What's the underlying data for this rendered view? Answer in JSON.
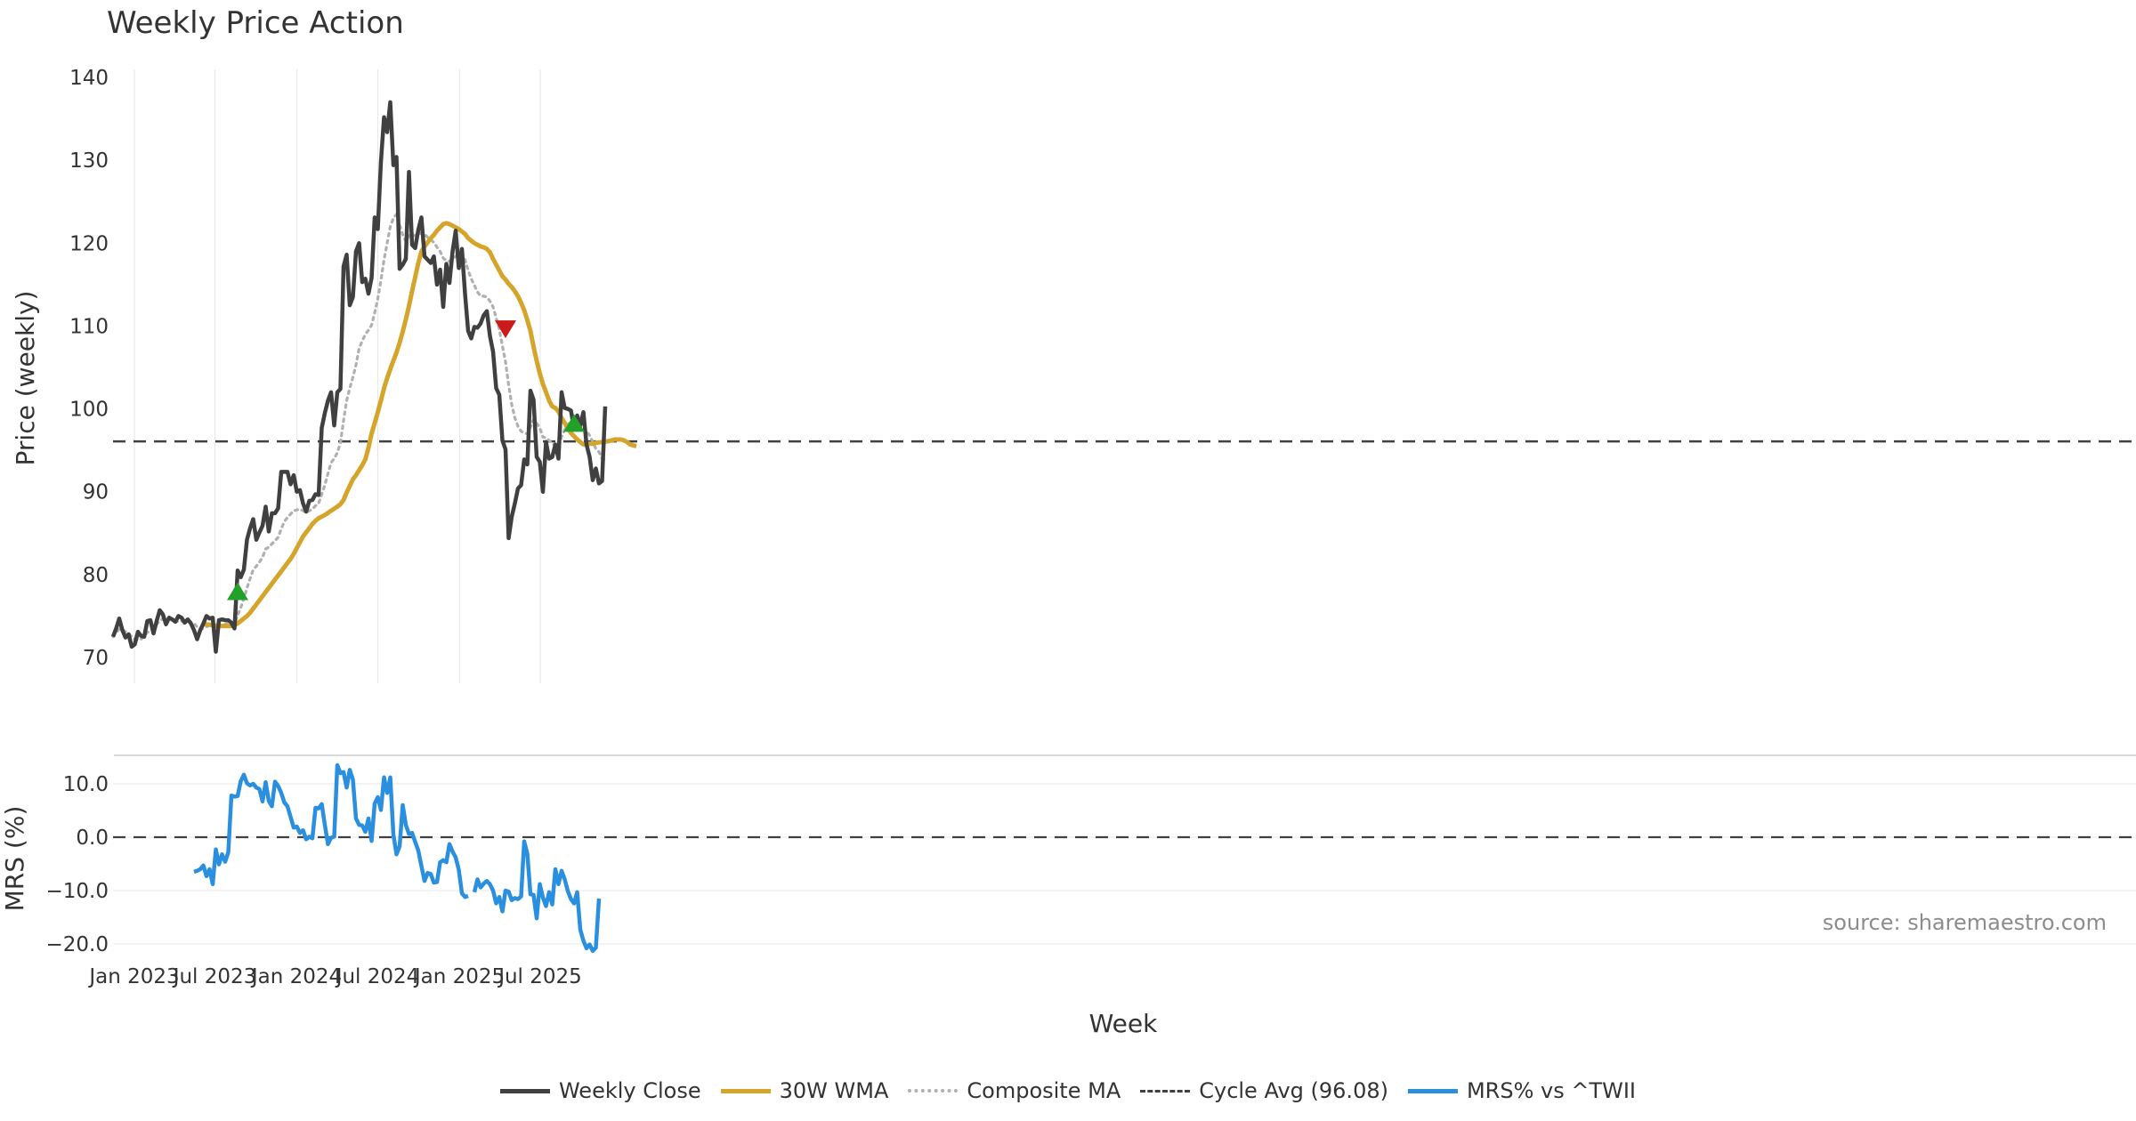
{
  "chart_data": [
    {
      "type": "line",
      "title": "Weekly Price Action",
      "xlabel": "",
      "ylabel": "Price (weekly)",
      "ylim": [
        67,
        141
      ],
      "yticks": [
        "70",
        "80",
        "90",
        "100",
        "110",
        "120",
        "130",
        "140"
      ],
      "x_start": "2022-11-14",
      "x_end": "2025-11-24",
      "x_step_weeks": 1,
      "series": [
        {
          "name": "Weekly Close",
          "color": "#404040",
          "style": "solid",
          "values": [
            72.5,
            73.5,
            74.7,
            73.3,
            72.4,
            72.8,
            71.3,
            71.6,
            73.1,
            72.6,
            72.5,
            74.4,
            74.5,
            72.9,
            74.4,
            75.7,
            75.2,
            74.0,
            74.8,
            74.6,
            74.3,
            75.0,
            74.8,
            74.2,
            74.6,
            74.1,
            73.3,
            72.2,
            73.3,
            74.1,
            75.0,
            74.7,
            74.8,
            70.7,
            74.5,
            74.6,
            74.5,
            74.5,
            74.2,
            73.5,
            80.5,
            79.7,
            80.6,
            84.2,
            85.6,
            86.7,
            84.2,
            85.1,
            85.9,
            88.2,
            85.2,
            87.4,
            87.4,
            88.0,
            92.4,
            92.4,
            92.4,
            90.9,
            92.0,
            90.0,
            90.2,
            88.6,
            87.6,
            88.9,
            89.0,
            89.7,
            89.6,
            97.7,
            99.5,
            101.0,
            102.0,
            98.0,
            102.0,
            102.4,
            117.2,
            118.6,
            112.5,
            113.5,
            119.0,
            120.0,
            115.3,
            115.7,
            113.9,
            115.8,
            123.1,
            121.7,
            129.8,
            135.2,
            133.4,
            137.0,
            129.4,
            130.4,
            116.9,
            117.4,
            118.1,
            128.6,
            119.8,
            119.4,
            121.6,
            123.1,
            118.4,
            118.0,
            117.6,
            118.4,
            115.0,
            116.8,
            112.3,
            117.5,
            115.2,
            119.0,
            121.5,
            117.0,
            119.3,
            113.9,
            109.4,
            108.5,
            109.9,
            109.8,
            110.3,
            111.3,
            111.8,
            108.8,
            106.9,
            102.5,
            101.7,
            96.2,
            95.1,
            84.4,
            87.0,
            88.6,
            90.4,
            90.8,
            93.9,
            93.3,
            102.2,
            101.1,
            94.2,
            93.6,
            90.0,
            96.0,
            94.0,
            94.2,
            95.7,
            94.0,
            102.0,
            100.1,
            100.0,
            99.8,
            97.6,
            99.2,
            98.0,
            99.6,
            95.7,
            94.2,
            91.4,
            92.8,
            91.0,
            91.3,
            100.3
          ]
        },
        {
          "name": "30W WMA",
          "color": "#d4a52a",
          "style": "solid",
          "start_index": 29,
          "values": [
            74.0,
            74.0,
            73.95,
            73.9,
            73.85,
            73.8,
            73.8,
            73.8,
            73.8,
            73.8,
            73.9,
            74.1,
            74.4,
            74.7,
            75.0,
            75.4,
            75.9,
            76.4,
            76.9,
            77.4,
            77.9,
            78.4,
            78.9,
            79.4,
            79.9,
            80.4,
            80.9,
            81.4,
            81.9,
            82.5,
            83.2,
            83.9,
            84.6,
            85.1,
            85.6,
            86.1,
            86.5,
            86.8,
            87.0,
            87.2,
            87.45,
            87.7,
            87.95,
            88.2,
            88.5,
            89.0,
            89.9,
            90.7,
            91.5,
            92.0,
            92.6,
            93.2,
            93.9,
            95.3,
            97.0,
            98.3,
            99.6,
            101.0,
            102.5,
            103.7,
            104.8,
            105.8,
            106.8,
            108.0,
            109.3,
            110.8,
            112.4,
            114.2,
            115.9,
            117.6,
            119.0,
            119.6,
            120.1,
            120.6,
            121.0,
            121.5,
            121.9,
            122.3,
            122.4,
            122.3,
            122.1,
            121.9,
            121.7,
            121.4,
            121.1,
            120.6,
            120.3,
            120.0,
            119.8,
            119.6,
            119.5,
            119.3,
            118.9,
            118.1,
            117.4,
            116.7,
            116.0,
            115.6,
            115.1,
            114.7,
            114.2,
            113.6,
            112.8,
            111.9,
            110.7,
            109.4,
            107.5,
            105.8,
            104.3,
            103.0,
            102.0,
            101.0,
            100.3,
            100.1,
            99.7,
            98.9,
            98.3,
            97.6,
            97.1,
            96.7,
            96.3,
            96.0,
            95.7,
            95.7,
            95.8,
            95.8,
            95.9,
            95.95,
            96.0,
            96.05,
            96.1,
            96.2,
            96.3,
            96.3,
            96.3,
            96.2,
            96.0,
            95.7,
            95.6,
            95.5
          ]
        },
        {
          "name": "Composite MA",
          "color": "#b0b0b0",
          "style": "dotted",
          "values": [
            72.5,
            73.0,
            73.4,
            73.4,
            73.1,
            72.9,
            72.5,
            72.2,
            72.1,
            72.2,
            72.6,
            73.0,
            73.3,
            73.5,
            74.0,
            74.4,
            74.7,
            74.8,
            74.7,
            74.5,
            74.4,
            74.3,
            74.4,
            74.3,
            74.4,
            74.3,
            74.1,
            73.7,
            73.4,
            73.5,
            73.7,
            73.9,
            74.0,
            73.5,
            73.7,
            73.8,
            74.0,
            74.1,
            74.1,
            74.0,
            75.1,
            76.0,
            77.1,
            78.4,
            79.5,
            80.6,
            81.0,
            81.5,
            82.1,
            83.1,
            83.3,
            83.7,
            84.1,
            84.5,
            85.5,
            86.4,
            86.9,
            87.3,
            87.7,
            87.8,
            87.9,
            87.7,
            87.5,
            87.7,
            87.9,
            88.3,
            88.6,
            89.7,
            90.8,
            92.2,
            93.5,
            94.0,
            94.7,
            95.9,
            98.6,
            101.0,
            102.5,
            103.8,
            105.3,
            107.3,
            108.2,
            109.0,
            109.5,
            110.1,
            111.6,
            113.3,
            115.5,
            118.0,
            120.0,
            122.0,
            123.0,
            123.5,
            122.2,
            121.0,
            120.2,
            120.9,
            121.0,
            120.9,
            121.0,
            121.3,
            121.1,
            120.7,
            120.4,
            120.1,
            119.5,
            119.0,
            118.2,
            117.9,
            117.8,
            118.1,
            118.4,
            118.6,
            118.7,
            118.0,
            116.7,
            115.7,
            114.9,
            114.1,
            113.6,
            113.6,
            113.5,
            113.0,
            112.3,
            111.0,
            109.6,
            107.6,
            105.7,
            102.9,
            100.5,
            98.9,
            97.9,
            97.3,
            97.1,
            97.0,
            97.8,
            98.7,
            98.3,
            97.7,
            96.6,
            96.5,
            96.2,
            95.8,
            95.6,
            95.4,
            96.6,
            97.5,
            98.1,
            98.5,
            98.4,
            98.4,
            98.1,
            98.0,
            97.3,
            96.8,
            96.0,
            95.2,
            94.8,
            94.0,
            93.8
          ]
        },
        {
          "name": "Cycle Avg (96.08)",
          "color": "#404040",
          "style": "dashed",
          "value": 96.08
        }
      ],
      "markers": [
        {
          "type": "buy",
          "date": "2023-08-21",
          "value": 78.0,
          "color": "#22a02a"
        },
        {
          "type": "sell",
          "date": "2025-04-14",
          "value": 109.6,
          "color": "#cc1a1a"
        },
        {
          "type": "buy",
          "date": "2025-09-15",
          "value": 98.3,
          "color": "#22a02a"
        }
      ]
    },
    {
      "type": "line",
      "title": "",
      "xlabel": "Week",
      "ylabel": "MRS (%)",
      "ylim": [
        -21.5,
        14
      ],
      "yticks": [
        "10.0",
        "0.0",
        "−10.0",
        "−20.0"
      ],
      "x_start": "2022-11-14",
      "x_step_weeks": 1,
      "xticks": [
        "Jan 2023",
        "Jul 2023",
        "Jan 2024",
        "Jul 2024",
        "Jan 2025",
        "Jul 2025"
      ],
      "series": [
        {
          "name": "MRS% vs ^TWII",
          "color": "#2b8fe0",
          "style": "solid",
          "start_index": 26,
          "values": [
            -6.5,
            -6.3,
            -6.0,
            -5.3,
            -7.3,
            -6.0,
            -8.8,
            -2.3,
            -5.1,
            -3.2,
            -4.6,
            -2.8,
            7.8,
            7.6,
            7.7,
            10.5,
            11.7,
            10.1,
            9.7,
            10.0,
            9.3,
            9.0,
            6.7,
            10.3,
            6.8,
            5.8,
            10.4,
            9.6,
            8.3,
            6.5,
            5.8,
            3.8,
            1.8,
            2.0,
            0.8,
            1.3,
            -0.4,
            0.1,
            -0.2,
            5.5,
            5.4,
            6.2,
            2.3,
            -1.3,
            -0.1,
            0.1,
            13.5,
            12.0,
            12.2,
            9.3,
            12.6,
            10.8,
            3.5,
            2.3,
            2.2,
            1.0,
            3.5,
            -0.7,
            6.3,
            7.5,
            5.1,
            11.2,
            8.3,
            11.2,
            0.5,
            -3.2,
            -1.7,
            6.0,
            2.3,
            0.6,
            0.8,
            -0.9,
            -2.5,
            -5.4,
            -8.2,
            -6.7,
            -6.9,
            -8.5,
            -8.4,
            -4.7,
            -4.3,
            -4.7,
            -1.3,
            -2.7,
            -3.8,
            -6.1,
            -10.5,
            -11.2,
            -11.0,
            null,
            -10.3,
            -7.9,
            -9.4,
            -8.7,
            -8.2,
            -8.8,
            -10.0,
            -12.4,
            -11.2,
            -13.9,
            -10.0,
            -10.2,
            -11.8,
            -11.4,
            -11.6,
            -11.1,
            -0.8,
            -3.1,
            -10.7,
            -10.8,
            -15.2,
            -8.8,
            -11.3,
            -12.9,
            -10.3,
            -12.6,
            -6.0,
            -8.8,
            -6.3,
            -7.9,
            -10.1,
            -11.6,
            -12.4,
            -10.3,
            -17.3,
            -19.4,
            -20.8,
            -20.1,
            -21.3,
            -20.7,
            -11.5
          ]
        },
        {
          "name": "zero line",
          "style": "dashed",
          "value": 0
        }
      ],
      "annotation": "source: sharemaestro.com"
    }
  ]
}
